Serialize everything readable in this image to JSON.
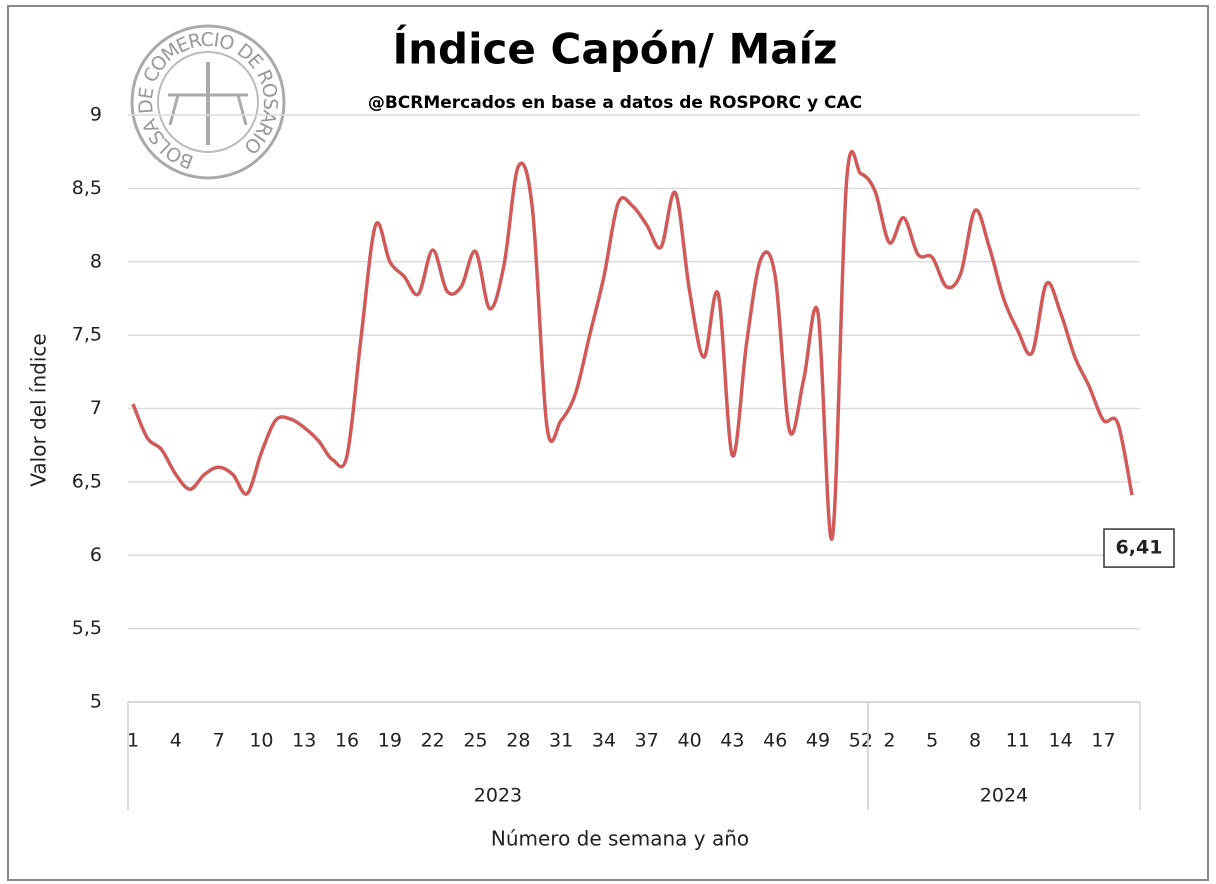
{
  "chart_data": {
    "type": "line",
    "title": "Índice Capón/ Maíz",
    "subtitle": "@BCRMercados  en base a datos de ROSPORC y CAC",
    "logo_text": "BOLSA DE COMERCIO DE ROSARIO",
    "ylabel": "Valor del índice",
    "xlabel": "Número de semana y año",
    "categories": [
      "1",
      null,
      null,
      "4",
      null,
      null,
      "7",
      null,
      null,
      "10",
      null,
      null,
      "13",
      null,
      null,
      "16",
      null,
      null,
      "19",
      null,
      null,
      "22",
      null,
      null,
      "25",
      null,
      null,
      "28",
      null,
      null,
      "31",
      null,
      null,
      "34",
      null,
      null,
      "37",
      null,
      null,
      "40",
      null,
      null,
      "43",
      null,
      null,
      "46",
      null,
      null,
      "49",
      null,
      null,
      "52",
      null,
      "2",
      null,
      null,
      "5",
      null,
      null,
      "8",
      null,
      null,
      "11",
      null,
      null,
      "14",
      null,
      null,
      "17",
      null,
      null
    ],
    "groups": [
      {
        "label": "2023",
        "span": 52
      },
      {
        "label": "2024",
        "span": 19
      }
    ],
    "series": [
      {
        "name": "Índice Capón/ Maíz",
        "color": "#d05a5a",
        "values": [
          7.03,
          6.8,
          6.72,
          6.55,
          6.45,
          6.55,
          6.6,
          6.55,
          6.42,
          6.7,
          6.92,
          6.93,
          6.87,
          6.78,
          6.65,
          6.68,
          7.5,
          8.25,
          8.0,
          7.9,
          7.78,
          8.08,
          7.8,
          7.83,
          8.07,
          7.68,
          7.98,
          8.65,
          8.35,
          6.88,
          6.92,
          7.1,
          7.5,
          7.9,
          8.4,
          8.38,
          8.25,
          8.1,
          8.47,
          7.8,
          7.35,
          7.78,
          6.68,
          7.45,
          8.02,
          7.9,
          6.85,
          7.2,
          7.65,
          6.12,
          8.55,
          8.6,
          8.48,
          8.13,
          8.3,
          8.05,
          8.03,
          7.83,
          7.92,
          8.35,
          8.1,
          7.75,
          7.53,
          7.38,
          7.85,
          7.65,
          7.35,
          7.15,
          6.92,
          6.9,
          6.41
        ],
        "value_labels": [
          null,
          null,
          null,
          null,
          null,
          null,
          null,
          null,
          null,
          null,
          null,
          null,
          null,
          null,
          null,
          null,
          null,
          null,
          null,
          null,
          null,
          null,
          null,
          null,
          null,
          null,
          null,
          null,
          null,
          null,
          null,
          null,
          null,
          null,
          null,
          null,
          null,
          null,
          null,
          null,
          null,
          null,
          null,
          null,
          null,
          null,
          null,
          null,
          null,
          null,
          null,
          null,
          null,
          null,
          null,
          null,
          null,
          null,
          null,
          null,
          null,
          null,
          null,
          null,
          null,
          null,
          null,
          null,
          null,
          null,
          "6,41"
        ]
      }
    ],
    "ylim": [
      5,
      9
    ],
    "yticks": [
      5,
      {
        "value": 5.5,
        "label": "5,5"
      },
      6,
      {
        "value": 6.5,
        "label": "6,5"
      },
      7,
      {
        "value": 7.5,
        "label": "7,5"
      },
      8,
      {
        "value": 8.5,
        "label": "8,5"
      },
      9
    ],
    "grid": true
  }
}
